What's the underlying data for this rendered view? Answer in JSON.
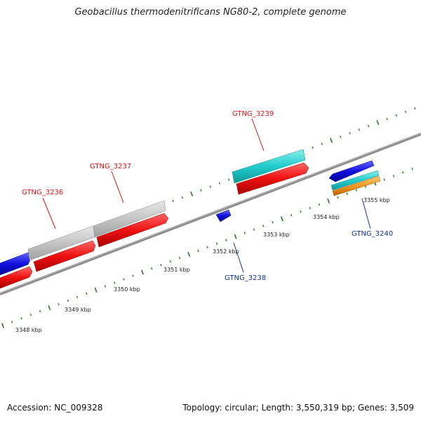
{
  "title": "Geobacillus thermodenitrificans NG80-2, complete genome",
  "footer": {
    "accession": "Accession: NC_009328",
    "summary": "Topology: circular; Length: 3,550,319 bp; Genes: 3,509"
  },
  "kbp_labels": [
    "3348 kbp",
    "3349 kbp",
    "3350 kbp",
    "3351 kbp",
    "3352 kbp",
    "3353 kbp",
    "3354 kbp",
    "3355 kbp"
  ],
  "gene_labels": {
    "g3236": "GTNG_3236",
    "g3237": "GTNG_3237",
    "g3238": "GTNG_3238",
    "g3239": "GTNG_3239",
    "g3240": "GTNG_3240"
  },
  "colors": {
    "backbone": "#8c8c8c",
    "tick": "#227722",
    "cds_red": "#ee1111",
    "gene_blue": "#1111dd",
    "gene_grey": "#c8c8c8",
    "gene_cyan": "#22cccc",
    "gene_orange": "#ee9922",
    "label_red": "#dd1111",
    "label_blue": "#113399"
  }
}
